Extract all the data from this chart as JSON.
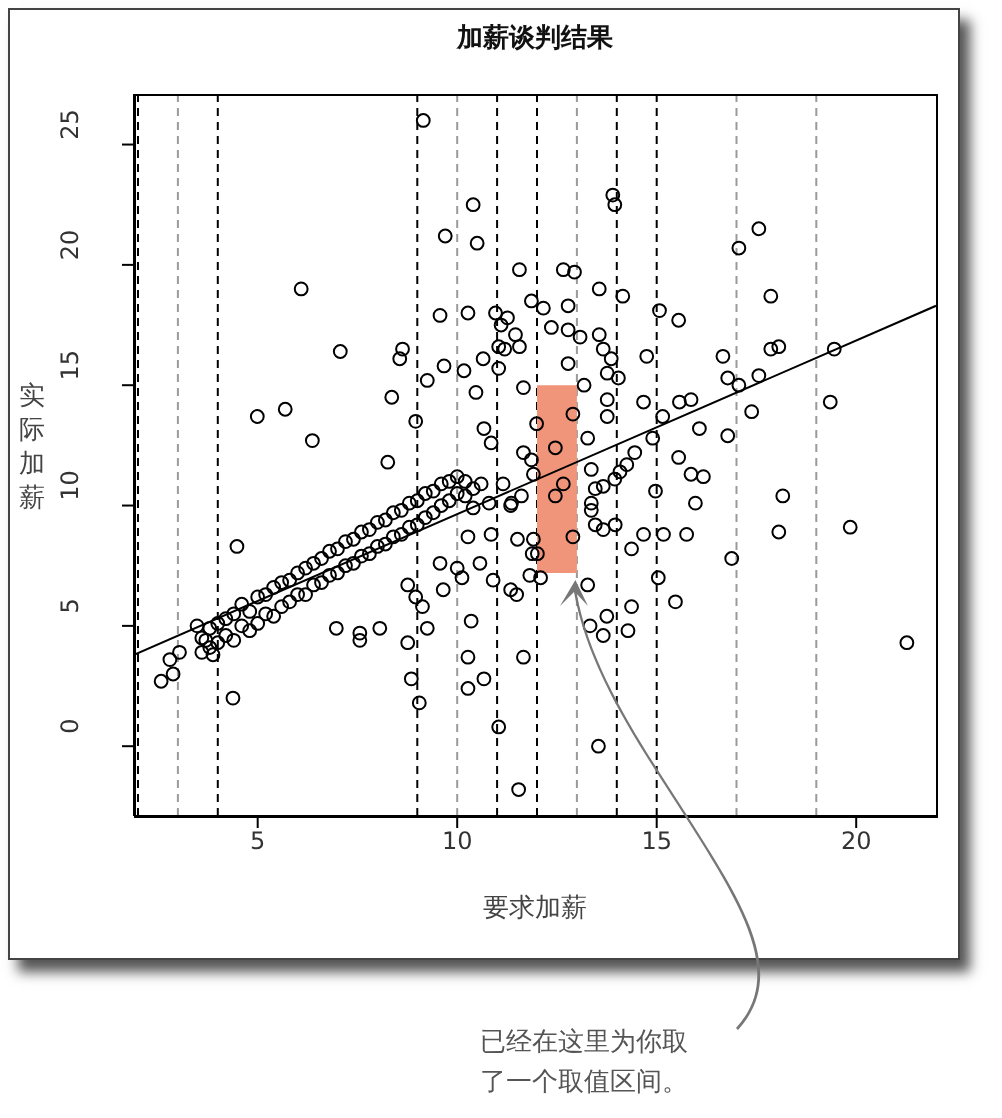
{
  "chart_data": {
    "type": "scatter",
    "title": "加薪谈判结果",
    "xlabel": "要求加薪",
    "ylabel": "实际加薪",
    "xlim": [
      1.9,
      22
    ],
    "ylim": [
      -2.9,
      27.1
    ],
    "xticks": [
      5,
      10,
      15,
      20
    ],
    "yticks": [
      0,
      5,
      10,
      15,
      20,
      25
    ],
    "marker": "circle",
    "annotations": [
      "已经在这里为你取了一个取值区间。"
    ],
    "ref_lines": [
      {
        "axis": "x",
        "value": 2,
        "color": "#000000",
        "line_style": "dashed"
      },
      {
        "axis": "x",
        "value": 3,
        "color": "#9a9a9a",
        "line_style": "dashed"
      },
      {
        "axis": "x",
        "value": 4,
        "color": "#000000",
        "line_style": "dashed"
      },
      {
        "axis": "x",
        "value": 9,
        "color": "#000000",
        "line_style": "dashed"
      },
      {
        "axis": "x",
        "value": 10,
        "color": "#9a9a9a",
        "line_style": "dashed"
      },
      {
        "axis": "x",
        "value": 11,
        "color": "#000000",
        "line_style": "dashed"
      },
      {
        "axis": "x",
        "value": 12,
        "color": "#000000",
        "line_style": "dashed"
      },
      {
        "axis": "x",
        "value": 13,
        "color": "#9a9a9a",
        "line_style": "dashed"
      },
      {
        "axis": "x",
        "value": 14,
        "color": "#000000",
        "line_style": "dashed"
      },
      {
        "axis": "x",
        "value": 15,
        "color": "#000000",
        "line_style": "dashed"
      },
      {
        "axis": "x",
        "value": 17,
        "color": "#9a9a9a",
        "line_style": "dashed"
      },
      {
        "axis": "x",
        "value": 19,
        "color": "#9a9a9a",
        "line_style": "dashed"
      }
    ],
    "series": [
      {
        "type": "area",
        "color": "#f0957a",
        "marker": "none",
        "x": [
          12,
          13
        ],
        "values": [
          null,
          null
        ],
        "lower": [
          7.2,
          7.2
        ],
        "upper": [
          15,
          15
        ]
      },
      {
        "color": "#000000",
        "x": [
          3.6,
          3.6,
          3.8,
          3.8,
          4.0,
          4.0,
          4.2,
          4.2,
          4.4,
          4.4,
          4.6,
          4.6,
          4.8,
          4.8,
          5.0,
          5.0,
          5.2,
          5.2,
          5.4,
          5.4,
          5.6,
          5.6,
          5.8,
          5.8,
          6.0,
          6.0,
          6.2,
          6.2,
          6.4,
          6.4,
          6.6,
          6.6,
          6.8,
          6.8,
          7.0,
          7.0,
          7.2,
          7.2,
          7.4,
          7.4,
          7.6,
          7.6,
          7.8,
          7.8,
          8.0,
          8.0,
          8.2,
          8.2,
          8.4,
          8.4,
          8.6,
          8.6,
          8.8,
          8.8,
          9.0,
          9.0,
          9.2,
          9.2,
          9.4,
          9.4,
          9.6,
          9.6,
          9.8,
          9.8,
          10.0,
          10.0,
          10.2,
          10.2,
          10.4,
          10.4,
          10.6,
          10.8,
          9.15,
          10.4,
          10.5,
          9.7,
          13.9,
          13.95,
          17.56,
          17.06,
          6.09,
          7.07,
          4.99,
          5.69,
          6.37,
          8.63,
          8.56,
          8.36,
          8.26,
          8.96,
          9.25,
          9.57,
          9.67,
          10.27,
          10.17,
          10.47,
          10.65,
          10.67,
          10.85,
          10.96,
          11.26,
          11.1,
          11.04,
          11.19,
          11.46,
          11.56,
          11.04,
          11.56,
          11.86,
          12.16,
          12.36,
          12.66,
          12.94,
          12.78,
          12.78,
          13.08,
          12.78,
          11.66,
          13.18,
          12.9,
          12.46,
          12.66,
          12.46,
          11.99,
          13.27,
          13.56,
          14.15,
          13.56,
          13.66,
          13.86,
          13.76,
          14.04,
          13.76,
          13.76,
          14.67,
          14.75,
          15.07,
          15.55,
          15.57,
          15.86,
          15.15,
          14.9,
          16.07,
          16.66,
          16.78,
          17.06,
          17.38,
          17.56,
          17.86,
          17.86,
          18.06,
          19.35,
          19.45,
          16.78,
          15.55,
          15.86,
          16.17,
          15.97,
          18.16,
          18.06,
          19.85,
          14.97,
          14.25,
          14.45,
          14.08,
          13.95,
          13.36,
          13.46,
          13.66,
          13.36,
          13.36,
          13.46,
          13.66,
          13.96,
          14.67,
          15.17,
          15.75,
          14.37,
          11.36,
          11.61,
          11.15,
          11.66,
          11.86,
          11.91,
          11.91,
          11.51,
          10.27,
          10.85,
          4.48,
          10.57,
          10.9,
          11.34,
          11.49,
          11.34,
          11.88,
          12.01,
          11.82,
          12.09,
          12.9,
          13.27,
          16.88,
          15.04,
          15.47,
          14.37,
          14.28,
          13.33,
          13.75,
          13.66,
          13.54,
          21.27,
          11.66,
          11.54,
          11.04,
          10.67,
          10.27,
          10.27,
          10.35,
          9.05,
          8.85,
          8.76,
          9.25,
          9.13,
          8.96,
          8.76,
          9.57,
          9.65,
          10.0,
          10.12,
          8.06,
          7.56,
          7.56,
          6.97,
          4.38,
          2.58,
          2.88,
          2.8,
          3.04,
          3.48,
          3.88,
          3.7
        ],
        "values": [
          4.5,
          3.9,
          4.9,
          4.1,
          5.1,
          4.3,
          4.6,
          5.3,
          5.5,
          4.4,
          5.0,
          5.9,
          5.6,
          4.8,
          6.2,
          5.1,
          5.5,
          6.3,
          6.6,
          5.4,
          5.8,
          6.8,
          6.9,
          6.0,
          6.3,
          7.2,
          7.4,
          6.3,
          6.7,
          7.6,
          7.8,
          6.8,
          7.1,
          8.1,
          8.2,
          7.2,
          7.5,
          8.5,
          8.6,
          7.6,
          7.9,
          8.9,
          9.0,
          8.0,
          8.3,
          9.3,
          9.4,
          8.4,
          8.7,
          9.7,
          9.8,
          8.8,
          9.1,
          10.1,
          10.2,
          9.2,
          9.5,
          10.5,
          10.6,
          9.7,
          10.0,
          10.9,
          11.0,
          10.2,
          10.5,
          11.2,
          11.0,
          10.4,
          10.7,
          9.9,
          10.9,
          10.1,
          26.0,
          22.5,
          20.9,
          21.2,
          22.9,
          22.5,
          21.5,
          20.7,
          19.0,
          16.4,
          13.7,
          14.0,
          12.7,
          16.5,
          16.1,
          14.5,
          11.8,
          13.5,
          15.2,
          17.9,
          15.8,
          18.0,
          15.6,
          14.7,
          16.1,
          13.2,
          12.6,
          18.0,
          17.8,
          17.5,
          16.6,
          16.5,
          17.1,
          16.6,
          15.7,
          19.8,
          18.5,
          18.2,
          17.4,
          19.8,
          19.7,
          18.3,
          17.3,
          17.0,
          15.9,
          14.9,
          15.0,
          13.8,
          12.4,
          10.9,
          10.4,
          13.4,
          12.8,
          19.0,
          18.7,
          17.1,
          16.5,
          16.1,
          15.5,
          15.3,
          14.4,
          13.7,
          14.3,
          16.2,
          18.1,
          17.7,
          14.3,
          14.4,
          13.7,
          12.8,
          13.2,
          16.2,
          15.3,
          15.0,
          13.9,
          15.4,
          18.7,
          16.5,
          16.6,
          14.3,
          16.5,
          12.9,
          12.0,
          11.3,
          11.2,
          10.1,
          10.4,
          8.9,
          9.1,
          10.6,
          11.7,
          12.2,
          11.4,
          11.1,
          11.5,
          10.7,
          10.8,
          10.1,
          9.8,
          9.2,
          9.0,
          9.2,
          8.8,
          8.8,
          8.8,
          8.2,
          10.1,
          10.4,
          10.9,
          12.2,
          11.9,
          11.3,
          8.6,
          8.6,
          8.7,
          8.8,
          8.3,
          7.6,
          6.9,
          6.5,
          6.3,
          10.0,
          8.0,
          8.0,
          7.1,
          7.0,
          8.7,
          6.7,
          7.8,
          7.0,
          6.0,
          5.8,
          4.8,
          5.0,
          5.4,
          4.6,
          0.0,
          4.3,
          3.7,
          -1.8,
          0.8,
          2.8,
          2.4,
          3.7,
          5.2,
          1.8,
          2.8,
          4.3,
          4.9,
          5.8,
          6.2,
          6.7,
          7.6,
          6.5,
          7.4,
          7.0,
          4.9,
          4.7,
          4.4,
          4.9,
          2.0,
          2.7,
          3.0,
          3.6,
          3.9,
          5.0,
          3.8,
          4.4
        ]
      },
      {
        "type": "line",
        "color": "#000000",
        "marker": "none",
        "x": [
          1.9,
          22
        ],
        "values": [
          3.8,
          18.3
        ]
      }
    ]
  }
}
